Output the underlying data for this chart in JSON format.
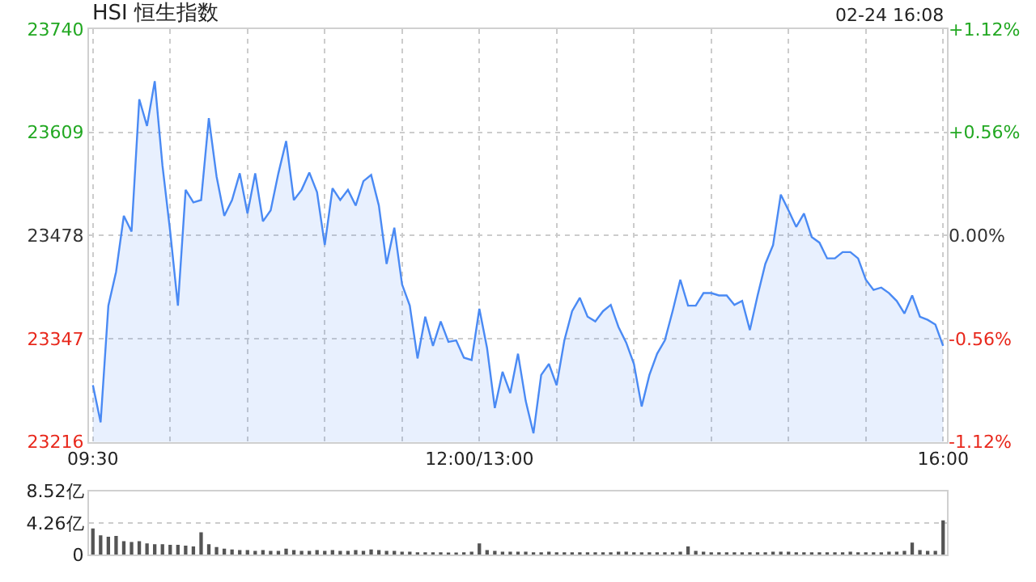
{
  "chart_data": [
    {
      "type": "area",
      "title": "HSI 恒生指数",
      "annotations": [
        "02-24 16:08"
      ],
      "color": "#4a8af4",
      "grid": true,
      "categories": [
        "09:30",
        null,
        null,
        null,
        null,
        null,
        null,
        null,
        null,
        null,
        null,
        null,
        null,
        null,
        null,
        null,
        null,
        null,
        null,
        null,
        null,
        null,
        null,
        null,
        null,
        null,
        null,
        null,
        null,
        null,
        null,
        null,
        null,
        null,
        null,
        null,
        null,
        null,
        null,
        null,
        null,
        null,
        null,
        null,
        null,
        null,
        null,
        null,
        null,
        null,
        "12:00/13:00",
        null,
        null,
        null,
        null,
        null,
        null,
        null,
        null,
        null,
        null,
        null,
        null,
        null,
        null,
        null,
        null,
        null,
        null,
        null,
        null,
        null,
        null,
        null,
        null,
        null,
        null,
        null,
        null,
        null,
        null,
        null,
        null,
        null,
        null,
        null,
        null,
        null,
        null,
        null,
        null,
        null,
        null,
        null,
        null,
        null,
        null,
        null,
        null,
        null,
        null,
        null,
        null,
        null,
        null,
        null,
        null,
        null,
        null,
        null,
        "16:00"
      ],
      "values": [
        23288,
        23241,
        23389,
        23432,
        23503,
        23483,
        23651,
        23617,
        23674,
        23567,
        23483,
        23389,
        23536,
        23520,
        23523,
        23627,
        23553,
        23503,
        23523,
        23557,
        23506,
        23557,
        23496,
        23510,
        23557,
        23598,
        23523,
        23536,
        23558,
        23533,
        23466,
        23538,
        23523,
        23536,
        23516,
        23547,
        23555,
        23516,
        23442,
        23488,
        23416,
        23389,
        23322,
        23375,
        23338,
        23369,
        23343,
        23345,
        23323,
        23320,
        23385,
        23335,
        23259,
        23305,
        23278,
        23328,
        23268,
        23227,
        23301,
        23315,
        23288,
        23345,
        23382,
        23399,
        23375,
        23369,
        23382,
        23390,
        23362,
        23342,
        23315,
        23261,
        23301,
        23328,
        23345,
        23382,
        23422,
        23389,
        23389,
        23405,
        23405,
        23402,
        23402,
        23390,
        23395,
        23358,
        23402,
        23442,
        23466,
        23530,
        23510,
        23489,
        23506,
        23476,
        23469,
        23449,
        23449,
        23457,
        23457,
        23449,
        23422,
        23409,
        23412,
        23405,
        23395,
        23379,
        23402,
        23375,
        23371,
        23365,
        23338
      ],
      "ylim": [
        23216,
        23740
      ],
      "yticks": [
        23216,
        23347,
        23478,
        23609,
        23740
      ],
      "y2lim": [
        -1.12,
        1.12
      ],
      "y2ticks": [
        {
          "value": -1.12,
          "label": "-1.12%"
        },
        {
          "value": -0.56,
          "label": "-0.56%"
        },
        {
          "value": 0,
          "label": "0.00%"
        },
        {
          "value": 0.56,
          "label": "+0.56%"
        },
        {
          "value": 1.12,
          "label": "+1.12%"
        }
      ]
    },
    {
      "type": "bar",
      "color": "#555555",
      "grid": "y",
      "tick_labels": "y",
      "categories": [
        null,
        null,
        null,
        null,
        null,
        null,
        null,
        null,
        null,
        null,
        null,
        null,
        null,
        null,
        null,
        null,
        null,
        null,
        null,
        null,
        null,
        null,
        null,
        null,
        null,
        null,
        null,
        null,
        null,
        null,
        null,
        null,
        null,
        null,
        null,
        null,
        null,
        null,
        null,
        null,
        null,
        null,
        null,
        null,
        null,
        null,
        null,
        null,
        null,
        null,
        null,
        null,
        null,
        null,
        null,
        null,
        null,
        null,
        null,
        null,
        null,
        null,
        null,
        null,
        null,
        null,
        null,
        null,
        null,
        null,
        null,
        null,
        null,
        null,
        null,
        null,
        null,
        null,
        null,
        null,
        null,
        null,
        null,
        null,
        null,
        null,
        null,
        null,
        null,
        null,
        null,
        null,
        null,
        null,
        null,
        null,
        null,
        null,
        null,
        null,
        null,
        null,
        null,
        null,
        null,
        null,
        null,
        null,
        null,
        null,
        null
      ],
      "values": [
        3.5,
        2.6,
        2.4,
        2.5,
        1.8,
        1.7,
        1.8,
        1.5,
        1.4,
        1.4,
        1.3,
        1.3,
        1.2,
        1.1,
        3.0,
        1.4,
        1.0,
        0.8,
        0.7,
        0.6,
        0.6,
        0.5,
        0.6,
        0.5,
        0.5,
        0.8,
        0.6,
        0.5,
        0.5,
        0.6,
        0.5,
        0.6,
        0.5,
        0.5,
        0.6,
        0.5,
        0.7,
        0.6,
        0.5,
        0.5,
        0.4,
        0.4,
        0.3,
        0.3,
        0.3,
        0.3,
        0.2,
        0.2,
        0.3,
        0.4,
        1.5,
        0.6,
        0.5,
        0.4,
        0.4,
        0.4,
        0.4,
        0.3,
        0.3,
        0.4,
        0.3,
        0.3,
        0.3,
        0.3,
        0.3,
        0.3,
        0.3,
        0.3,
        0.4,
        0.4,
        0.3,
        0.3,
        0.3,
        0.3,
        0.3,
        0.3,
        0.4,
        1.1,
        0.5,
        0.4,
        0.3,
        0.3,
        0.3,
        0.3,
        0.3,
        0.3,
        0.3,
        0.3,
        0.4,
        0.4,
        0.4,
        0.3,
        0.3,
        0.3,
        0.3,
        0.3,
        0.3,
        0.3,
        0.4,
        0.3,
        0.3,
        0.3,
        0.3,
        0.4,
        0.4,
        0.5,
        1.6,
        0.6,
        0.5,
        0.5,
        4.6
      ],
      "ylim": [
        0,
        8.52
      ],
      "yticks": [
        0,
        {
          "value": 4.26,
          "label": "4.26亿"
        },
        {
          "value": 8.52,
          "label": "8.52亿"
        }
      ]
    }
  ]
}
